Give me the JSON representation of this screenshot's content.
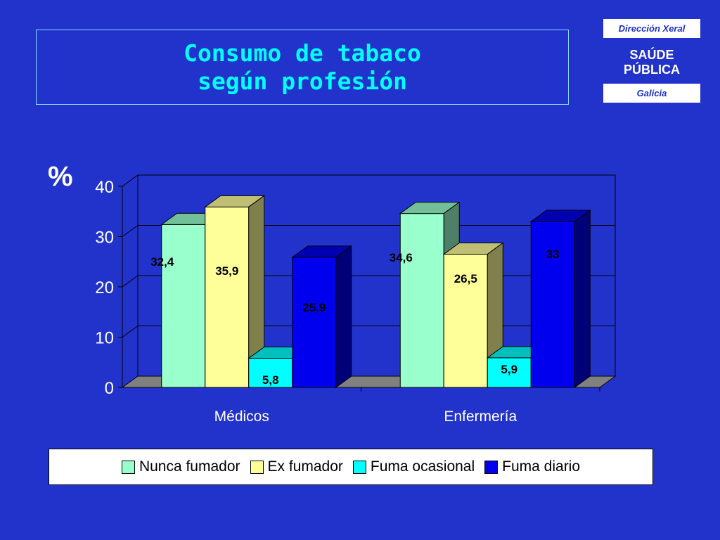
{
  "header": {
    "title_line1": "Consumo de tabaco",
    "title_line2": "según profesión"
  },
  "logo": {
    "top_label": "Dirección Xeral",
    "middle_line1": "SAÚDE",
    "middle_line2": "PÚBLICA",
    "bottom_label": "Galicia"
  },
  "colors": {
    "background": "#2233cc",
    "title": "#00ffff"
  },
  "chart_data": {
    "type": "bar",
    "ylabel": "%",
    "ylim": [
      0,
      40
    ],
    "yticks": [
      "0",
      "10",
      "20",
      "30",
      "40"
    ],
    "categories": [
      "Médicos",
      "Enfermería"
    ],
    "series": [
      {
        "name": "Nunca fumador",
        "values": [
          32.4,
          34.6
        ],
        "labels": [
          "32,4",
          "34,6"
        ],
        "color": "#99ffcc"
      },
      {
        "name": "Ex fumador",
        "values": [
          35.9,
          26.5
        ],
        "labels": [
          "35,9",
          "26,5"
        ],
        "color": "#ffff99"
      },
      {
        "name": "Fuma ocasional",
        "values": [
          5.8,
          5.9
        ],
        "labels": [
          "5,8",
          "5,9"
        ],
        "color": "#00ffff"
      },
      {
        "name": "Fuma diario",
        "values": [
          25.9,
          33
        ],
        "labels": [
          "25,9",
          "33"
        ],
        "color": "#0000ee"
      }
    ],
    "grid": true,
    "legend": "bottom"
  }
}
